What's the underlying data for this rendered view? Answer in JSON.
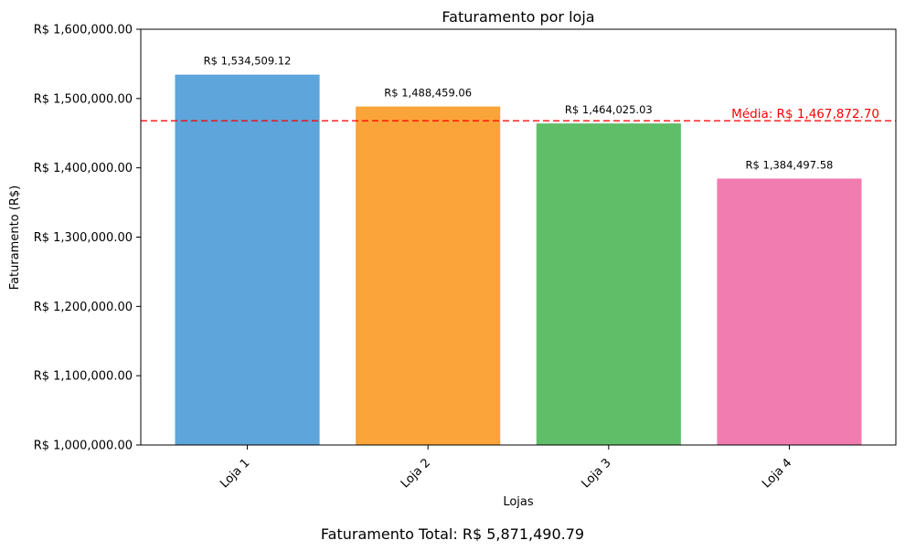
{
  "chart_data": {
    "type": "bar",
    "title": "Faturamento por loja",
    "xlabel": "Lojas",
    "ylabel": "Faturamento (R$)",
    "categories": [
      "Loja 1",
      "Loja 2",
      "Loja 3",
      "Loja 4"
    ],
    "values": [
      1534509.12,
      1488459.06,
      1464025.03,
      1384497.58
    ],
    "value_labels": [
      "R$ 1,534,509.12",
      "R$ 1,488,459.06",
      "R$ 1,464,025.03",
      "R$ 1,384,497.58"
    ],
    "colors": [
      "#5DA5DA",
      "#FAA43A",
      "#60BD68",
      "#F17CB0"
    ],
    "ylim": [
      1000000,
      1600000
    ],
    "yticks": [
      1000000,
      1100000,
      1200000,
      1300000,
      1400000,
      1500000,
      1600000
    ],
    "ytick_labels": [
      "R$ 1,000,000.00",
      "R$ 1,100,000.00",
      "R$ 1,200,000.00",
      "R$ 1,300,000.00",
      "R$ 1,400,000.00",
      "R$ 1,500,000.00",
      "R$ 1,600,000.00"
    ],
    "average": {
      "value": 1467872.7,
      "label": "Média: R$ 1,467,872.70",
      "color": "#FF0000"
    },
    "grid": false,
    "footer": "Faturamento Total: R$ 5,871,490.79"
  }
}
